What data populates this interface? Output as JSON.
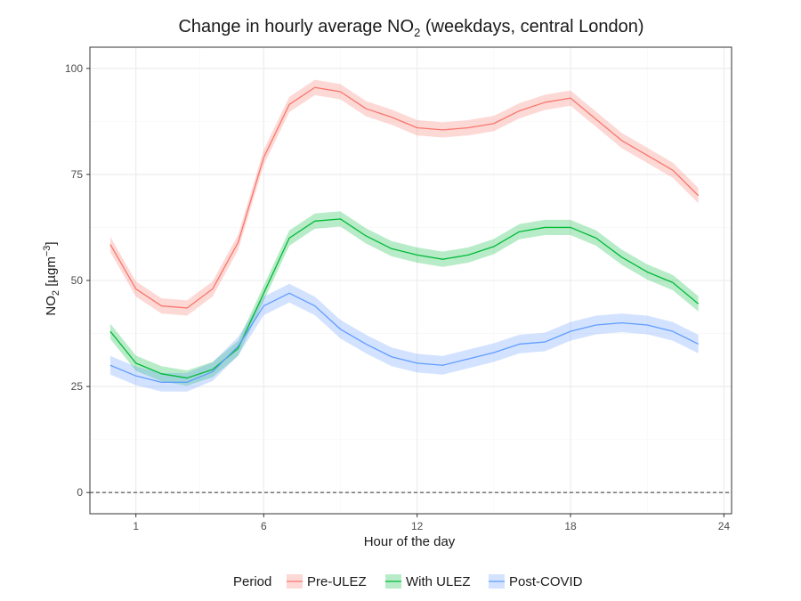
{
  "chart_data": {
    "type": "line",
    "title": {
      "pre": "Change in hourly average NO",
      "sub": "2",
      "post": " (weekdays, central London)"
    },
    "xlabel": "Hour of the day",
    "ylabel": {
      "pre": "NO",
      "sub": "2",
      "mid": " [µgm",
      "sup": "−3",
      "post": "]"
    },
    "x_ticks": [
      1,
      6,
      12,
      18,
      24
    ],
    "y_ticks": [
      0,
      25,
      50,
      75,
      100
    ],
    "xlim": [
      -0.8,
      24.3
    ],
    "ylim": [
      -5,
      105
    ],
    "grid": true,
    "reference_line": {
      "y": 0,
      "style": "dashed"
    },
    "legend": {
      "title": "Period",
      "position": "bottom"
    },
    "x": [
      0,
      1,
      2,
      3,
      4,
      5,
      6,
      7,
      8,
      9,
      10,
      11,
      12,
      13,
      14,
      15,
      16,
      17,
      18,
      19,
      20,
      21,
      22,
      23
    ],
    "series": [
      {
        "name": "Pre-ULEZ",
        "color": "#F8766D",
        "values": [
          58.5,
          48,
          44,
          43.5,
          48,
          59,
          79,
          91.5,
          95.5,
          94.5,
          90.5,
          88.5,
          86,
          85.5,
          86,
          87,
          90,
          92,
          93,
          88,
          83,
          79.5,
          76,
          70
        ],
        "band": 1.8
      },
      {
        "name": "With ULEZ",
        "color": "#00BA38",
        "values": [
          38,
          30.5,
          28,
          27,
          29,
          34,
          47,
          60,
          64,
          64.5,
          60.5,
          57.5,
          56,
          55,
          56,
          58,
          61.5,
          62.5,
          62.5,
          60,
          55.5,
          52,
          49.5,
          44.5
        ],
        "band": 1.8
      },
      {
        "name": "Post-COVID",
        "color": "#619CFF",
        "values": [
          30,
          27.5,
          26,
          26,
          28.5,
          34.5,
          44,
          47,
          44,
          38.5,
          35,
          32,
          30.5,
          30,
          31.5,
          33,
          35,
          35.5,
          38,
          39.5,
          40,
          39.5,
          38,
          35
        ],
        "band": 2.2
      }
    ]
  }
}
